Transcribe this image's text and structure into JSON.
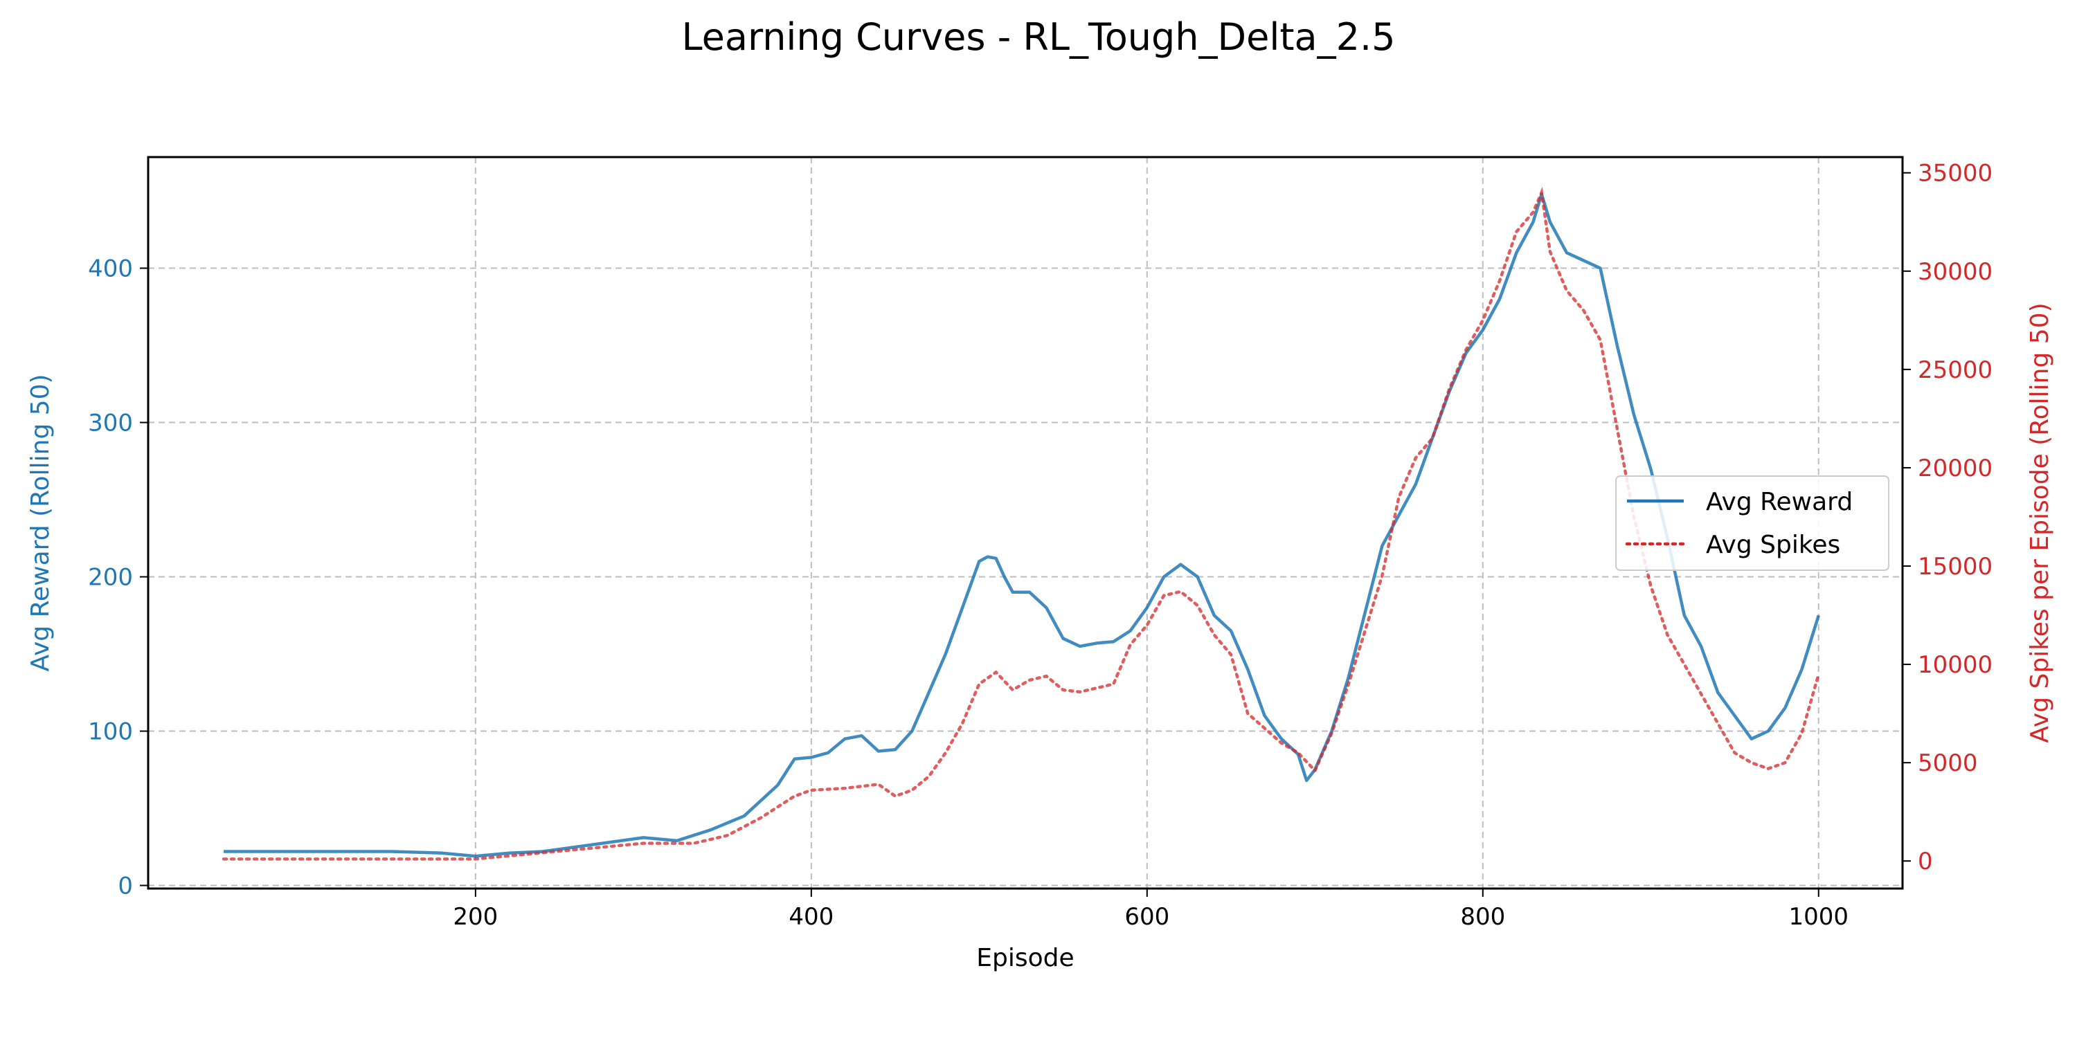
{
  "chart_data": {
    "type": "line",
    "title": "Learning Curves - RL_Tough_Delta_2.5",
    "xlabel": "Episode",
    "ylabel_left": "Avg Reward (Rolling 50)",
    "ylabel_right": "Avg Spikes per Episode (Rolling 50)",
    "xlim": [
      5,
      1050
    ],
    "ylim_left": [
      -2,
      472
    ],
    "ylim_right": [
      -1400,
      35800
    ],
    "xticks": [
      200,
      400,
      600,
      800,
      1000
    ],
    "yticks_left": [
      0,
      100,
      200,
      300,
      400
    ],
    "yticks_right": [
      0,
      5000,
      10000,
      15000,
      20000,
      25000,
      30000,
      35000
    ],
    "grid": true,
    "legend_position": "center-right",
    "colors": {
      "reward": "#1f77b4",
      "spikes": "#d62728"
    },
    "series": [
      {
        "name": "Avg Reward",
        "axis": "left",
        "style": "solid",
        "color": "#1f77b4",
        "x": [
          50,
          80,
          100,
          120,
          150,
          180,
          200,
          220,
          240,
          260,
          280,
          300,
          320,
          340,
          360,
          380,
          390,
          400,
          410,
          420,
          430,
          440,
          450,
          460,
          470,
          480,
          490,
          500,
          505,
          510,
          515,
          520,
          530,
          540,
          550,
          560,
          570,
          580,
          590,
          600,
          610,
          620,
          630,
          640,
          650,
          660,
          670,
          680,
          690,
          695,
          700,
          710,
          720,
          740,
          750,
          760,
          770,
          780,
          790,
          800,
          810,
          820,
          830,
          835,
          840,
          850,
          860,
          870,
          880,
          890,
          900,
          910,
          920,
          930,
          940,
          950,
          960,
          970,
          980,
          990,
          1000
        ],
        "y": [
          22,
          22,
          22,
          22,
          22,
          21,
          19,
          21,
          22,
          25,
          28,
          31,
          29,
          36,
          45,
          65,
          82,
          83,
          86,
          95,
          97,
          87,
          88,
          100,
          125,
          150,
          180,
          210,
          213,
          212,
          200,
          190,
          190,
          180,
          160,
          155,
          157,
          158,
          165,
          180,
          200,
          208,
          200,
          175,
          165,
          140,
          110,
          95,
          85,
          68,
          75,
          100,
          135,
          220,
          240,
          260,
          290,
          320,
          345,
          360,
          380,
          410,
          430,
          448,
          430,
          410,
          405,
          400,
          350,
          305,
          270,
          225,
          175,
          155,
          125,
          110,
          95,
          100,
          115,
          140,
          175
        ]
      },
      {
        "name": "Avg Spikes",
        "axis": "right",
        "style": "dotted",
        "color": "#d62728",
        "x": [
          50,
          100,
          150,
          200,
          250,
          300,
          330,
          350,
          370,
          390,
          400,
          420,
          440,
          450,
          460,
          470,
          480,
          490,
          500,
          510,
          520,
          530,
          540,
          550,
          560,
          570,
          580,
          590,
          600,
          610,
          620,
          630,
          640,
          650,
          660,
          680,
          690,
          700,
          710,
          720,
          740,
          750,
          760,
          770,
          780,
          790,
          800,
          810,
          820,
          830,
          835,
          840,
          850,
          860,
          870,
          880,
          890,
          900,
          910,
          920,
          930,
          940,
          950,
          960,
          970,
          980,
          990,
          1000
        ],
        "y": [
          100,
          100,
          100,
          100,
          500,
          900,
          900,
          1300,
          2200,
          3300,
          3600,
          3700,
          3900,
          3300,
          3600,
          4300,
          5500,
          7000,
          9000,
          9600,
          8700,
          9200,
          9400,
          8700,
          8600,
          8800,
          9000,
          11000,
          12000,
          13500,
          13700,
          13000,
          11500,
          10500,
          7500,
          6000,
          5500,
          4600,
          6500,
          9000,
          14500,
          18500,
          20500,
          21500,
          24000,
          26000,
          27500,
          29500,
          32000,
          33000,
          34000,
          31000,
          29000,
          28000,
          26500,
          22000,
          17500,
          14000,
          11500,
          10000,
          8500,
          7000,
          5500,
          5000,
          4700,
          5000,
          6500,
          9500
        ]
      }
    ]
  }
}
